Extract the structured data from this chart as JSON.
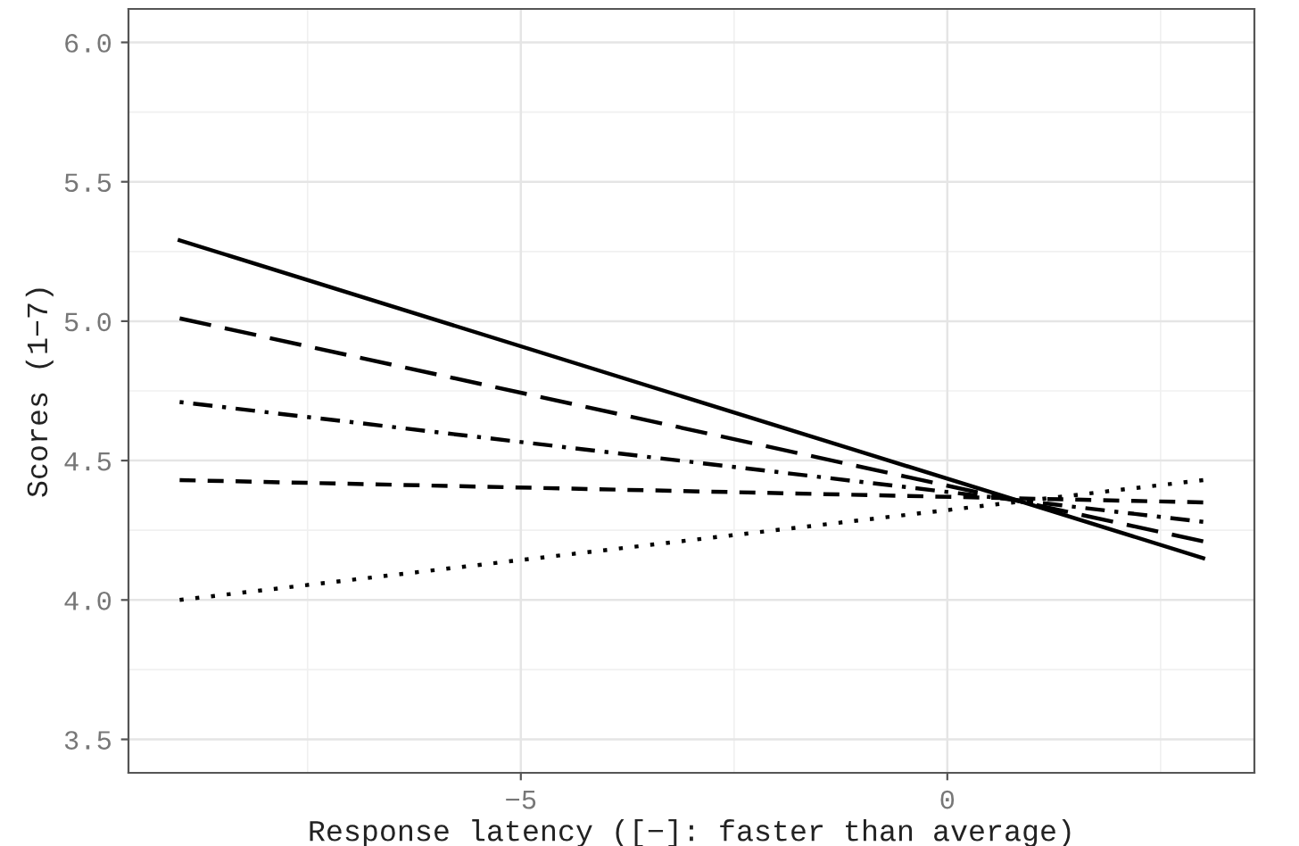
{
  "chart_data": {
    "type": "line",
    "xlabel": "Response latency ([−]: faster than average)",
    "ylabel": "Scores (1−7)",
    "x": [
      -9,
      3
    ],
    "series": [
      {
        "color": "#000000",
        "line_style": "solid",
        "values": [
          5.29,
          4.15
        ]
      },
      {
        "color": "#000000",
        "line_style": "longdash",
        "values": [
          5.01,
          4.21
        ]
      },
      {
        "color": "#000000",
        "line_style": "dotdash",
        "values": [
          4.71,
          4.28
        ]
      },
      {
        "color": "#000000",
        "line_style": "dashed",
        "values": [
          4.43,
          4.35
        ]
      },
      {
        "color": "#000000",
        "line_style": "dotted",
        "values": [
          4.0,
          4.43
        ]
      }
    ],
    "xlim": [
      -9.6,
      3.6
    ],
    "xticks": [
      {
        "value": -5,
        "label": "−5"
      },
      0
    ],
    "ylim": [
      3.38,
      6.12
    ],
    "yticks": [
      {
        "value": 3.5,
        "label": "3.5"
      },
      {
        "value": 4.0,
        "label": "4.0"
      },
      {
        "value": 4.5,
        "label": "4.5"
      },
      {
        "value": 5.0,
        "label": "5.0"
      },
      {
        "value": 5.5,
        "label": "5.5"
      },
      {
        "value": 6.0,
        "label": "6.0"
      }
    ],
    "grid": true,
    "legend": false
  }
}
